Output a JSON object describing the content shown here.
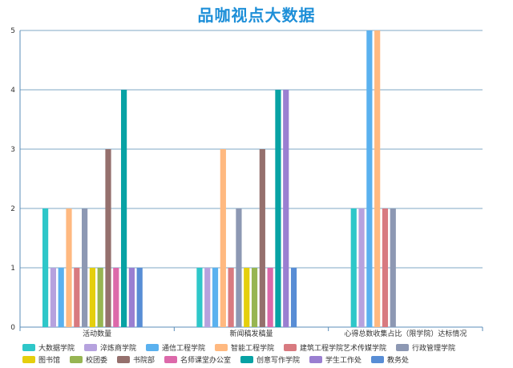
{
  "chart_data": {
    "type": "bar",
    "title": "品咖视点大数据",
    "categories": [
      "活动数量",
      "新闻稿发稿量",
      "心得总数收集占比（限学院）达标情况"
    ],
    "ylim": [
      0,
      5
    ],
    "yticks": [
      0,
      1,
      2,
      3,
      4,
      5
    ],
    "grid": true,
    "legend_position": "bottom",
    "series": [
      {
        "name": "大数据学院",
        "color": "#2EC7C9",
        "values": [
          2,
          1,
          2
        ]
      },
      {
        "name": "淬炼商学院",
        "color": "#B6A2DE",
        "values": [
          1,
          1,
          2
        ]
      },
      {
        "name": "通信工程学院",
        "color": "#5AB1EF",
        "values": [
          1,
          1,
          5
        ]
      },
      {
        "name": "智能工程学院",
        "color": "#FFB980",
        "values": [
          2,
          3,
          5
        ]
      },
      {
        "name": "建筑工程学院艺术传媒学院",
        "color": "#D87A80",
        "values": [
          1,
          1,
          2
        ]
      },
      {
        "name": "行政管理学院",
        "color": "#8D98B3",
        "values": [
          2,
          2,
          2
        ]
      },
      {
        "name": "图书馆",
        "color": "#E5CF0D",
        "values": [
          1,
          1,
          null
        ]
      },
      {
        "name": "校团委",
        "color": "#97B552",
        "values": [
          1,
          1,
          null
        ]
      },
      {
        "name": "书院部",
        "color": "#95706D",
        "values": [
          3,
          3,
          null
        ]
      },
      {
        "name": "名师课堂办公室",
        "color": "#DC69AA",
        "values": [
          1,
          1,
          null
        ]
      },
      {
        "name": "创意写作学院",
        "color": "#07A2A4",
        "values": [
          4,
          4,
          null
        ]
      },
      {
        "name": "学生工作处",
        "color": "#9A7FD1",
        "values": [
          1,
          4,
          null
        ]
      },
      {
        "name": "教务处",
        "color": "#588DD5",
        "values": [
          1,
          1,
          null
        ]
      }
    ]
  }
}
